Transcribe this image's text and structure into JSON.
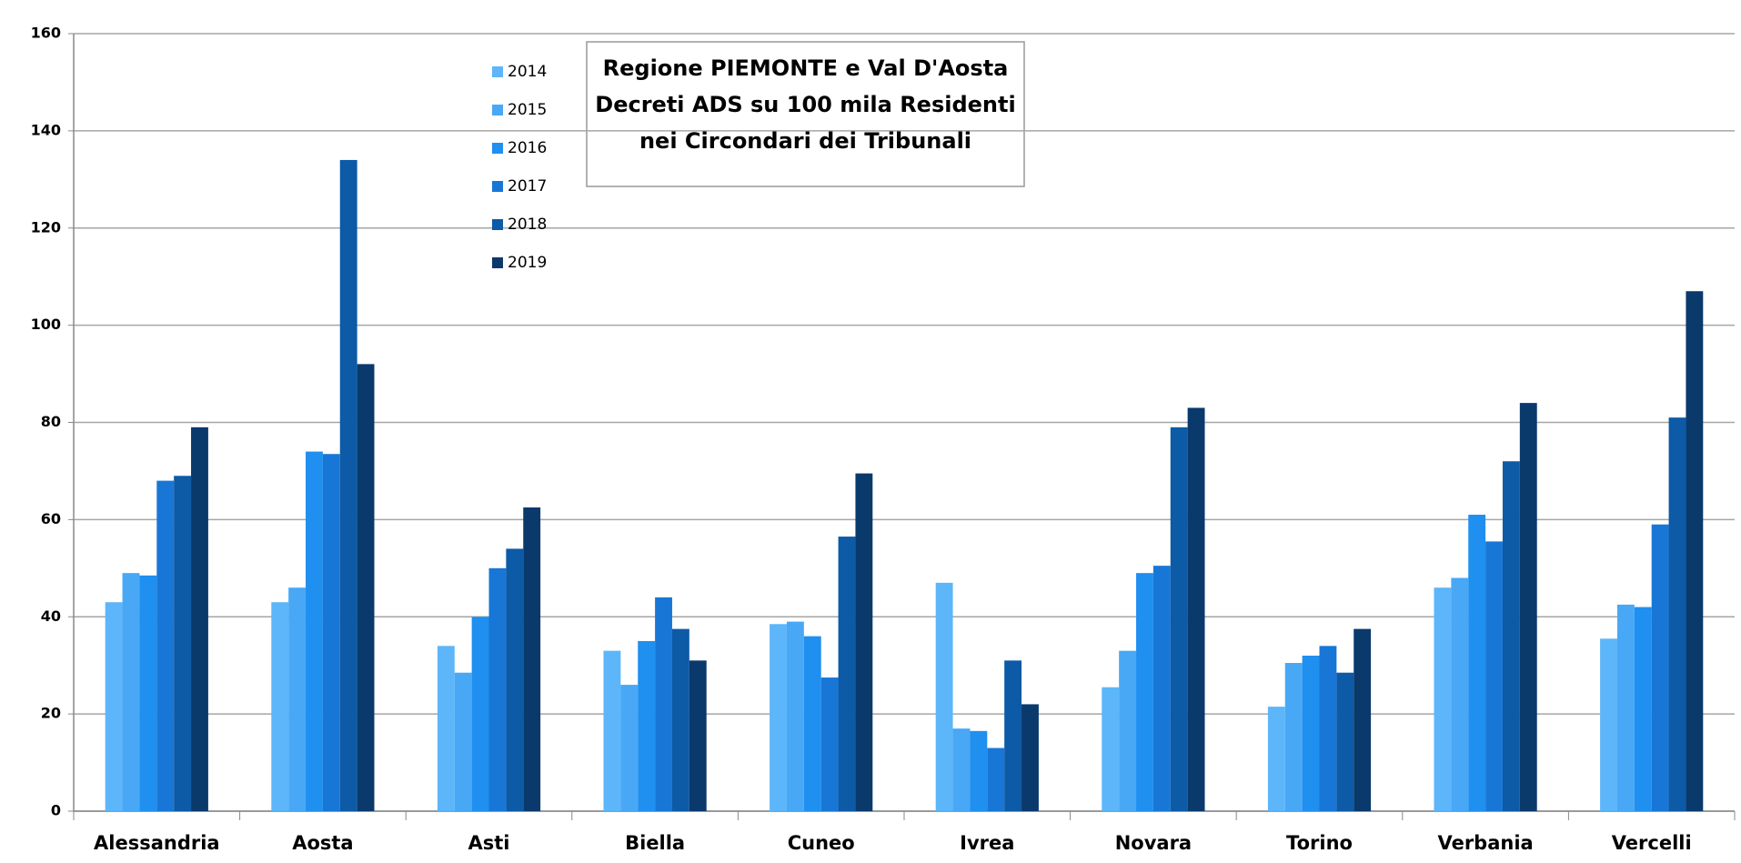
{
  "chart_data": {
    "type": "bar",
    "title": [
      "Regione PIEMONTE e Val D'Aosta",
      "Decreti ADS su 100 mila Residenti",
      "nei Circondari dei Tribunali"
    ],
    "categories": [
      "Alessandria",
      "Aosta",
      "Asti",
      "Biella",
      "Cuneo",
      "Ivrea",
      "Novara",
      "Torino",
      "Verbania",
      "Vercelli"
    ],
    "series": [
      {
        "name": "2014",
        "color": "#5cb6f9",
        "values": [
          43,
          43,
          34,
          33,
          38.5,
          47,
          25.5,
          21.5,
          46,
          35.5
        ]
      },
      {
        "name": "2015",
        "color": "#48a8f6",
        "values": [
          49,
          46,
          28.5,
          26,
          39,
          17,
          33,
          30.5,
          48,
          42.5
        ]
      },
      {
        "name": "2016",
        "color": "#1f8ff0",
        "values": [
          48.5,
          74,
          40,
          35,
          36,
          16.5,
          49,
          32,
          61,
          42
        ]
      },
      {
        "name": "2017",
        "color": "#1877d6",
        "values": [
          68,
          73.5,
          50,
          44,
          27.5,
          13,
          50.5,
          34,
          55.5,
          59
        ]
      },
      {
        "name": "2018",
        "color": "#0d5aa6",
        "values": [
          69,
          134,
          54,
          37.5,
          56.5,
          31,
          79,
          28.5,
          72,
          81
        ]
      },
      {
        "name": "2019",
        "color": "#0a396c",
        "values": [
          79,
          92,
          62.5,
          31,
          69.5,
          22,
          83,
          37.5,
          84,
          107
        ]
      }
    ],
    "ylim": [
      0,
      160
    ],
    "yticks": [
      0,
      20,
      40,
      60,
      80,
      100,
      120,
      140,
      160
    ],
    "grid": true
  }
}
